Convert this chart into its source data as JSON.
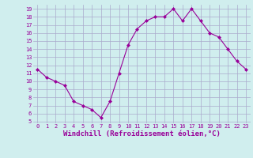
{
  "x": [
    0,
    1,
    2,
    3,
    4,
    5,
    6,
    7,
    8,
    9,
    10,
    11,
    12,
    13,
    14,
    15,
    16,
    17,
    18,
    19,
    20,
    21,
    22,
    23
  ],
  "y": [
    11.5,
    10.5,
    10.0,
    9.5,
    7.5,
    7.0,
    6.5,
    5.5,
    7.5,
    11.0,
    14.5,
    16.5,
    17.5,
    18.0,
    18.0,
    19.0,
    17.5,
    19.0,
    17.5,
    16.0,
    15.5,
    14.0,
    12.5,
    11.5
  ],
  "line_color": "#990099",
  "marker": "D",
  "marker_size": 2.0,
  "xlabel": "Windchill (Refroidissement éolien,°C)",
  "ylim": [
    5,
    19
  ],
  "xlim": [
    0,
    23
  ],
  "yticks": [
    5,
    6,
    7,
    8,
    9,
    10,
    11,
    12,
    13,
    14,
    15,
    16,
    17,
    18,
    19
  ],
  "xticks": [
    0,
    1,
    2,
    3,
    4,
    5,
    6,
    7,
    8,
    9,
    10,
    11,
    12,
    13,
    14,
    15,
    16,
    17,
    18,
    19,
    20,
    21,
    22,
    23
  ],
  "bg_color": "#d0eeee",
  "grid_color": "#aaaacc",
  "tick_label_color": "#990099",
  "tick_label_size": 5.0,
  "xlabel_size": 6.5,
  "xlabel_color": "#990099",
  "line_width": 0.8
}
